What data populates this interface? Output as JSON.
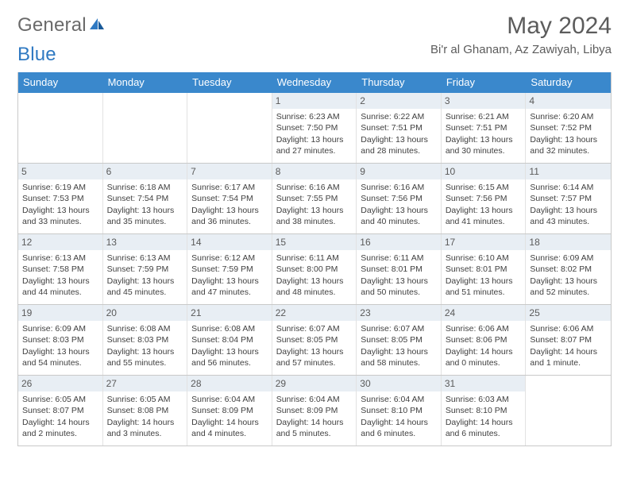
{
  "brand": {
    "part1": "General",
    "part2": "Blue"
  },
  "title": "May 2024",
  "location": "Bi'r al Ghanam, Az Zawiyah, Libya",
  "colors": {
    "header_bg": "#3a88cc",
    "header_fg": "#ffffff",
    "daynum_bg": "#e8eef4",
    "border": "#c9c9c9",
    "text": "#3f3f3f",
    "logo_gray": "#6a6a6a",
    "logo_blue": "#2f79c2"
  },
  "weekdays": [
    "Sunday",
    "Monday",
    "Tuesday",
    "Wednesday",
    "Thursday",
    "Friday",
    "Saturday"
  ],
  "weeks": [
    [
      null,
      null,
      null,
      {
        "n": "1",
        "sr": "6:23 AM",
        "ss": "7:50 PM",
        "dl": "13 hours and 27 minutes."
      },
      {
        "n": "2",
        "sr": "6:22 AM",
        "ss": "7:51 PM",
        "dl": "13 hours and 28 minutes."
      },
      {
        "n": "3",
        "sr": "6:21 AM",
        "ss": "7:51 PM",
        "dl": "13 hours and 30 minutes."
      },
      {
        "n": "4",
        "sr": "6:20 AM",
        "ss": "7:52 PM",
        "dl": "13 hours and 32 minutes."
      }
    ],
    [
      {
        "n": "5",
        "sr": "6:19 AM",
        "ss": "7:53 PM",
        "dl": "13 hours and 33 minutes."
      },
      {
        "n": "6",
        "sr": "6:18 AM",
        "ss": "7:54 PM",
        "dl": "13 hours and 35 minutes."
      },
      {
        "n": "7",
        "sr": "6:17 AM",
        "ss": "7:54 PM",
        "dl": "13 hours and 36 minutes."
      },
      {
        "n": "8",
        "sr": "6:16 AM",
        "ss": "7:55 PM",
        "dl": "13 hours and 38 minutes."
      },
      {
        "n": "9",
        "sr": "6:16 AM",
        "ss": "7:56 PM",
        "dl": "13 hours and 40 minutes."
      },
      {
        "n": "10",
        "sr": "6:15 AM",
        "ss": "7:56 PM",
        "dl": "13 hours and 41 minutes."
      },
      {
        "n": "11",
        "sr": "6:14 AM",
        "ss": "7:57 PM",
        "dl": "13 hours and 43 minutes."
      }
    ],
    [
      {
        "n": "12",
        "sr": "6:13 AM",
        "ss": "7:58 PM",
        "dl": "13 hours and 44 minutes."
      },
      {
        "n": "13",
        "sr": "6:13 AM",
        "ss": "7:59 PM",
        "dl": "13 hours and 45 minutes."
      },
      {
        "n": "14",
        "sr": "6:12 AM",
        "ss": "7:59 PM",
        "dl": "13 hours and 47 minutes."
      },
      {
        "n": "15",
        "sr": "6:11 AM",
        "ss": "8:00 PM",
        "dl": "13 hours and 48 minutes."
      },
      {
        "n": "16",
        "sr": "6:11 AM",
        "ss": "8:01 PM",
        "dl": "13 hours and 50 minutes."
      },
      {
        "n": "17",
        "sr": "6:10 AM",
        "ss": "8:01 PM",
        "dl": "13 hours and 51 minutes."
      },
      {
        "n": "18",
        "sr": "6:09 AM",
        "ss": "8:02 PM",
        "dl": "13 hours and 52 minutes."
      }
    ],
    [
      {
        "n": "19",
        "sr": "6:09 AM",
        "ss": "8:03 PM",
        "dl": "13 hours and 54 minutes."
      },
      {
        "n": "20",
        "sr": "6:08 AM",
        "ss": "8:03 PM",
        "dl": "13 hours and 55 minutes."
      },
      {
        "n": "21",
        "sr": "6:08 AM",
        "ss": "8:04 PM",
        "dl": "13 hours and 56 minutes."
      },
      {
        "n": "22",
        "sr": "6:07 AM",
        "ss": "8:05 PM",
        "dl": "13 hours and 57 minutes."
      },
      {
        "n": "23",
        "sr": "6:07 AM",
        "ss": "8:05 PM",
        "dl": "13 hours and 58 minutes."
      },
      {
        "n": "24",
        "sr": "6:06 AM",
        "ss": "8:06 PM",
        "dl": "14 hours and 0 minutes."
      },
      {
        "n": "25",
        "sr": "6:06 AM",
        "ss": "8:07 PM",
        "dl": "14 hours and 1 minute."
      }
    ],
    [
      {
        "n": "26",
        "sr": "6:05 AM",
        "ss": "8:07 PM",
        "dl": "14 hours and 2 minutes."
      },
      {
        "n": "27",
        "sr": "6:05 AM",
        "ss": "8:08 PM",
        "dl": "14 hours and 3 minutes."
      },
      {
        "n": "28",
        "sr": "6:04 AM",
        "ss": "8:09 PM",
        "dl": "14 hours and 4 minutes."
      },
      {
        "n": "29",
        "sr": "6:04 AM",
        "ss": "8:09 PM",
        "dl": "14 hours and 5 minutes."
      },
      {
        "n": "30",
        "sr": "6:04 AM",
        "ss": "8:10 PM",
        "dl": "14 hours and 6 minutes."
      },
      {
        "n": "31",
        "sr": "6:03 AM",
        "ss": "8:10 PM",
        "dl": "14 hours and 6 minutes."
      },
      null
    ]
  ],
  "labels": {
    "sunrise": "Sunrise:",
    "sunset": "Sunset:",
    "daylight": "Daylight:"
  }
}
